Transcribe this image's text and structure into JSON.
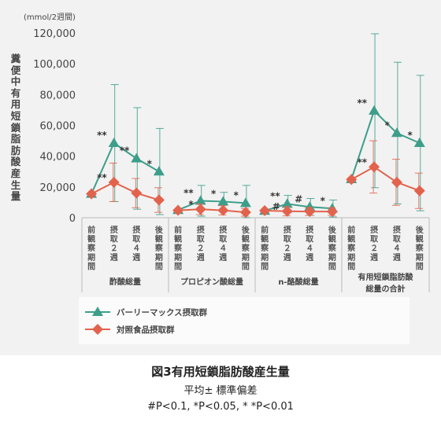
{
  "chart_data": {
    "type": "line",
    "y_unit": "(mmol/2週間)",
    "ylabel": "糞便中有用短鎖脂肪酸産生量",
    "ylim": [
      0,
      120000
    ],
    "yticks": [
      "0",
      "20,000",
      "40,000",
      "60,000",
      "80,000",
      "100,000",
      "120,000"
    ],
    "yticks_values": [
      0,
      20000,
      40000,
      60000,
      80000,
      100000,
      120000
    ],
    "time_labels": [
      "前観察期間",
      "摂取２週",
      "摂取４週",
      "後観察期間"
    ],
    "groups": [
      "酢酸総量",
      "プロピオン酸総量",
      "n-酪酸総量",
      "有用短鎖脂肪酸総量の合計"
    ],
    "series": [
      {
        "name": "バーリーマックス摂取群",
        "color": "#3d9e8a",
        "marker": "triangle",
        "panels": [
          {
            "values": [
              15500,
              48500,
              38500,
              30000
            ],
            "errors": [
              0,
              38000,
              33000,
              28000
            ],
            "marks": [
              "",
              "**",
              "**",
              "*"
            ]
          },
          {
            "values": [
              5000,
              11000,
              10500,
              9500
            ],
            "errors": [
              0,
              10000,
              6000,
              11500
            ],
            "marks": [
              "",
              "**",
              "*",
              "*"
            ]
          },
          {
            "values": [
              4500,
              9000,
              7000,
              6000
            ],
            "errors": [
              0,
              5500,
              5500,
              5500
            ],
            "marks": [
              "",
              "**",
              "#",
              "*"
            ]
          },
          {
            "values": [
              25000,
              69500,
              55000,
              48500
            ],
            "errors": [
              0,
              50000,
              46000,
              44000
            ],
            "marks": [
              "",
              "**",
              "*",
              "*"
            ]
          }
        ]
      },
      {
        "name": "対照食品摂取群",
        "color": "#e2634d",
        "marker": "diamond",
        "panels": [
          {
            "values": [
              15500,
              23000,
              16000,
              11500
            ],
            "errors": [
              0,
              12500,
              9500,
              8000
            ],
            "marks": [
              "",
              "**",
              "",
              ""
            ]
          },
          {
            "values": [
              4800,
              5500,
              4800,
              3500
            ],
            "errors": [
              0,
              3500,
              3000,
              2500
            ],
            "marks": [
              "",
              "*",
              "",
              ""
            ]
          },
          {
            "values": [
              4600,
              4200,
              4000,
              4000
            ],
            "errors": [
              0,
              3000,
              2500,
              2500
            ],
            "marks": [
              "",
              "#",
              "",
              ""
            ]
          },
          {
            "values": [
              24800,
              33000,
              23000,
              17500
            ],
            "errors": [
              0,
              17000,
              15000,
              11500
            ],
            "marks": [
              "",
              "**",
              "",
              ""
            ]
          }
        ]
      }
    ]
  },
  "caption": {
    "title": "図3有用短鎖脂肪酸産生量",
    "subtitle": "平均± 標準偏差",
    "note": "#P<0.1, *P<0.05, * *P<0.01"
  }
}
